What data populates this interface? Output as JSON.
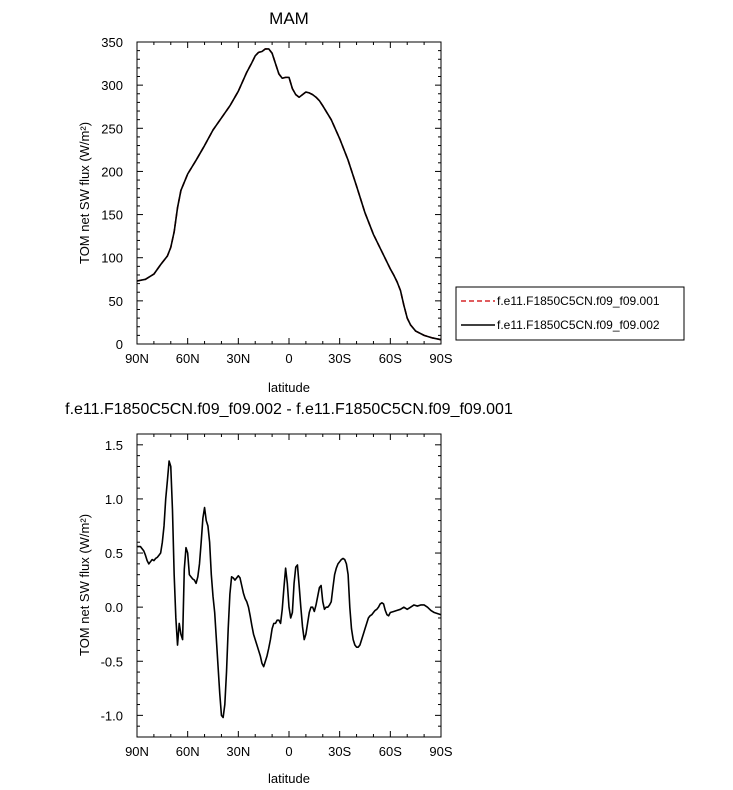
{
  "chart_data": [
    {
      "type": "line",
      "title": "MAM",
      "xlabel": "latitude",
      "ylabel": "TOM net SW flux (W/m²)",
      "xlim": [
        90,
        -90
      ],
      "ylim": [
        0,
        350
      ],
      "x_ticks": [
        90,
        60,
        30,
        0,
        -30,
        -60,
        -90
      ],
      "x_tick_labels": [
        "90N",
        "60N",
        "30N",
        "0",
        "30S",
        "60S",
        "90S"
      ],
      "y_ticks": [
        0,
        50,
        100,
        150,
        200,
        250,
        300,
        350
      ],
      "y_tick_labels": [
        "0",
        "50",
        "100",
        "150",
        "200",
        "250",
        "300",
        "350"
      ],
      "legend": "right",
      "x": [
        90,
        85,
        80,
        76,
        72,
        70,
        68,
        66,
        64,
        60,
        55,
        50,
        45,
        40,
        35,
        30,
        25,
        22,
        20,
        18,
        16,
        14,
        12,
        10,
        8,
        6,
        4,
        2,
        0,
        -2,
        -4,
        -6,
        -8,
        -10,
        -12,
        -14,
        -16,
        -18,
        -20,
        -25,
        -30,
        -35,
        -40,
        -45,
        -50,
        -55,
        -60,
        -62,
        -64,
        -66,
        -68,
        -70,
        -72,
        -75,
        -80,
        -85,
        -90
      ],
      "series": [
        {
          "name": "f.e11.F1850C5CN.f09_f09.001",
          "color": "#d62728",
          "dash": "dashed",
          "values": [
            73,
            75,
            81,
            92,
            102,
            112,
            130,
            158,
            178,
            197,
            213,
            230,
            248,
            262,
            276,
            293,
            315,
            326,
            334,
            338,
            339,
            342,
            342,
            337,
            325,
            313,
            308,
            309,
            309,
            296,
            289,
            286,
            289,
            292,
            291,
            289,
            286,
            282,
            276,
            260,
            238,
            213,
            183,
            152,
            127,
            107,
            87,
            80,
            72,
            62,
            45,
            30,
            22,
            15,
            10,
            7,
            5
          ]
        },
        {
          "name": "f.e11.F1850C5CN.f09_f09.002",
          "color": "#000000",
          "dash": "solid",
          "values": [
            73,
            75,
            81,
            92,
            102,
            112,
            130,
            158,
            178,
            197,
            213,
            230,
            248,
            262,
            276,
            293,
            315,
            326,
            334,
            338,
            339,
            342,
            342,
            337,
            325,
            313,
            308,
            309,
            309,
            296,
            289,
            286,
            289,
            292,
            291,
            289,
            286,
            282,
            276,
            260,
            238,
            213,
            183,
            152,
            127,
            107,
            87,
            80,
            72,
            62,
            45,
            30,
            22,
            15,
            10,
            7,
            5
          ]
        }
      ]
    },
    {
      "type": "line",
      "title": "f.e11.F1850C5CN.f09_f09.002 - f.e11.F1850C5CN.f09_f09.001",
      "xlabel": "latitude",
      "ylabel": "TOM net SW flux (W/m²)",
      "xlim": [
        90,
        -90
      ],
      "ylim": [
        -1.2,
        1.6
      ],
      "x_ticks": [
        90,
        60,
        30,
        0,
        -30,
        -60,
        -90
      ],
      "x_tick_labels": [
        "90N",
        "60N",
        "30N",
        "0",
        "30S",
        "60S",
        "90S"
      ],
      "y_ticks": [
        -1.0,
        -0.5,
        0.0,
        0.5,
        1.0,
        1.5
      ],
      "y_tick_labels": [
        "-1.0",
        "-0.5",
        "0.0",
        "0.5",
        "1.0",
        "1.5"
      ],
      "series": [
        {
          "color": "#000000",
          "dash": "solid",
          "x": [
            90,
            88,
            86,
            85,
            84,
            83,
            82,
            81,
            80,
            79,
            78,
            77,
            76,
            75,
            74,
            73,
            72,
            71,
            70,
            69,
            68,
            67,
            66,
            65,
            64,
            63,
            62,
            61,
            60,
            59,
            58,
            57,
            56,
            55,
            54,
            53,
            52,
            51,
            50,
            49,
            48,
            47,
            46,
            45,
            44,
            43,
            42,
            41,
            40,
            39,
            38,
            37,
            36,
            35,
            34,
            33,
            32,
            30,
            29,
            28,
            27,
            26,
            25,
            24,
            23,
            22,
            21,
            20,
            19,
            18,
            17,
            16,
            15,
            14,
            13,
            12,
            11,
            10,
            9,
            8,
            7,
            6,
            5,
            4,
            3,
            2,
            1,
            0,
            -1,
            -2,
            -3,
            -4,
            -5,
            -6,
            -7,
            -8,
            -9,
            -10,
            -11,
            -12,
            -13,
            -14,
            -15,
            -16,
            -17,
            -18,
            -19,
            -20,
            -21,
            -22,
            -23,
            -24,
            -25,
            -26,
            -27,
            -28,
            -29,
            -30,
            -31,
            -32,
            -33,
            -34,
            -35,
            -36,
            -37,
            -38,
            -39,
            -40,
            -41,
            -42,
            -43,
            -44,
            -45,
            -46,
            -47,
            -48,
            -49,
            -50,
            -51,
            -52,
            -53,
            -54,
            -55,
            -56,
            -57,
            -58,
            -59,
            -60,
            -62,
            -64,
            -66,
            -68,
            -70,
            -72,
            -74,
            -76,
            -78,
            -80,
            -82,
            -84,
            -86,
            -88,
            -90
          ],
          "values": [
            0.56,
            0.56,
            0.52,
            0.48,
            0.43,
            0.4,
            0.42,
            0.44,
            0.43,
            0.45,
            0.46,
            0.48,
            0.5,
            0.6,
            0.75,
            1.0,
            1.17,
            1.35,
            1.3,
            0.9,
            0.3,
            -0.1,
            -0.35,
            -0.15,
            -0.25,
            -0.3,
            0.35,
            0.55,
            0.5,
            0.3,
            0.28,
            0.26,
            0.25,
            0.22,
            0.28,
            0.4,
            0.6,
            0.82,
            0.92,
            0.8,
            0.75,
            0.6,
            0.3,
            0.1,
            -0.05,
            -0.3,
            -0.55,
            -0.8,
            -1.0,
            -1.02,
            -0.9,
            -0.6,
            -0.2,
            0.12,
            0.28,
            0.27,
            0.25,
            0.29,
            0.27,
            0.2,
            0.13,
            0.08,
            0.05,
            0.0,
            -0.08,
            -0.17,
            -0.25,
            -0.3,
            -0.35,
            -0.4,
            -0.45,
            -0.52,
            -0.55,
            -0.5,
            -0.45,
            -0.38,
            -0.3,
            -0.2,
            -0.15,
            -0.15,
            -0.12,
            -0.12,
            -0.15,
            -0.02,
            0.18,
            0.36,
            0.22,
            0.0,
            -0.1,
            -0.05,
            0.22,
            0.37,
            0.39,
            0.2,
            0.0,
            -0.18,
            -0.3,
            -0.25,
            -0.15,
            -0.05,
            0.0,
            0.0,
            -0.04,
            0.02,
            0.1,
            0.18,
            0.2,
            0.05,
            -0.02,
            0.0,
            0.0,
            0.02,
            0.05,
            0.18,
            0.3,
            0.36,
            0.4,
            0.42,
            0.44,
            0.45,
            0.44,
            0.4,
            0.3,
            0.0,
            -0.2,
            -0.3,
            -0.35,
            -0.37,
            -0.37,
            -0.35,
            -0.3,
            -0.25,
            -0.2,
            -0.15,
            -0.1,
            -0.08,
            -0.07,
            -0.05,
            -0.03,
            -0.02,
            0.0,
            0.03,
            0.04,
            0.03,
            -0.03,
            -0.07,
            -0.08,
            -0.05,
            -0.04,
            -0.03,
            -0.02,
            0.0,
            -0.02,
            0.0,
            0.02,
            0.01,
            0.02,
            0.02,
            0.0,
            -0.03,
            -0.05,
            -0.06,
            -0.07
          ]
        }
      ]
    }
  ]
}
